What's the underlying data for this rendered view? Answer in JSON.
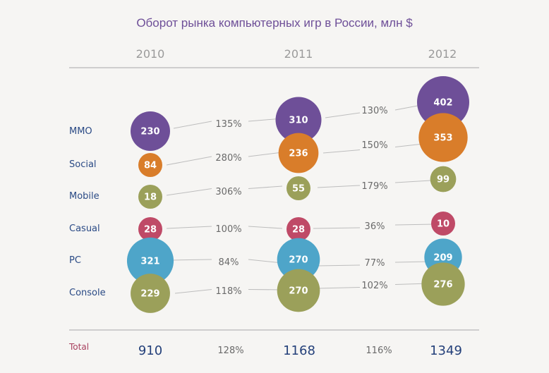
{
  "chart_data": {
    "type": "bubble",
    "title": "Оборот рынка компьютерных игр в России, млн $",
    "years": [
      "2010",
      "2011",
      "2012"
    ],
    "categories": [
      "MMO",
      "Social",
      "Mobile",
      "Casual",
      "PC",
      "Console"
    ],
    "series": [
      {
        "year": "2010",
        "values": [
          230,
          84,
          18,
          28,
          321,
          229
        ]
      },
      {
        "year": "2011",
        "values": [
          310,
          236,
          55,
          28,
          270,
          270
        ]
      },
      {
        "year": "2012",
        "values": [
          402,
          353,
          99,
          10,
          209,
          276
        ]
      }
    ],
    "growth": [
      {
        "period": "2010-2011",
        "labels": [
          "135%",
          "280%",
          "306%",
          "100%",
          "84%",
          "118%"
        ]
      },
      {
        "period": "2011-2012",
        "labels": [
          "130%",
          "150%",
          "179%",
          "36%",
          "77%",
          "102%"
        ]
      }
    ],
    "total_label": "Total",
    "totals": [
      "910",
      "1168",
      "1349"
    ],
    "total_growth": [
      "128%",
      "116%"
    ],
    "colors": {
      "MMO": "#6e4f98",
      "Social": "#d97d2a",
      "Mobile": "#9ba05a",
      "Casual": "#bf4a67",
      "PC": "#4ea5c9",
      "Console": "#9ba05a",
      "title": "#6e4f98",
      "category_label": "#2a4a85",
      "total_label": "#a8405e",
      "year": "#9a9a9a",
      "total_value": "#24407a",
      "growth": "#6a6a6a",
      "rule": "#b8b8b8",
      "connector": "#bdbdbd"
    }
  }
}
